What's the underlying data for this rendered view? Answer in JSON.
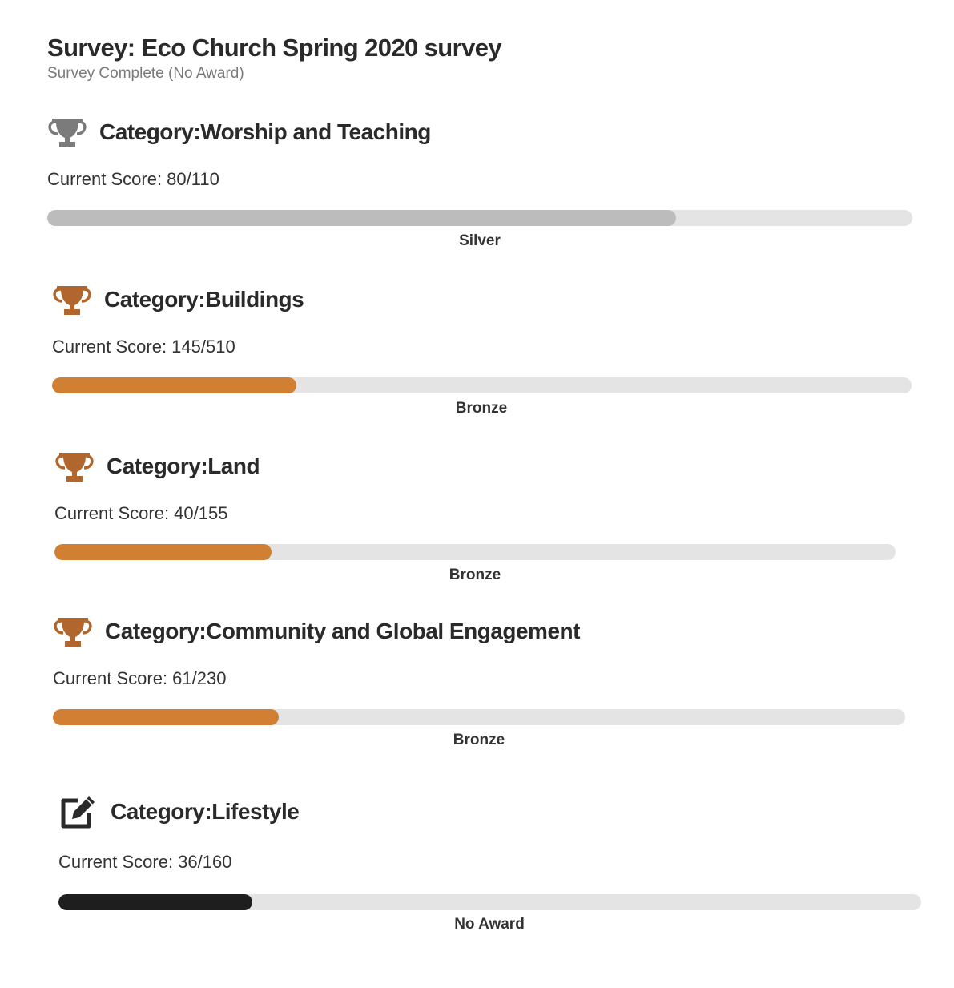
{
  "survey": {
    "title": "Survey: Eco Church Spring 2020 survey",
    "status": "Survey Complete (No Award)"
  },
  "colors": {
    "silver": "#bcbcbc",
    "bronze": "#d17f33",
    "none": "#1e1e1e",
    "track": "#e4e4e4",
    "trophy_silver": "#7b7b7b",
    "trophy_bronze": "#b0662d",
    "edit_icon": "#2a2a2a"
  },
  "categories": [
    {
      "title": "Category:Worship and Teaching",
      "score_text": "Current Score: 80/110",
      "score": 80,
      "max": 110,
      "progress": 0.727,
      "award": "Silver",
      "icon": "trophy-icon"
    },
    {
      "title": "Category:Buildings",
      "score_text": "Current Score: 145/510",
      "score": 145,
      "max": 510,
      "progress": 0.284,
      "award": "Bronze",
      "icon": "trophy-icon"
    },
    {
      "title": "Category:Land",
      "score_text": "Current Score: 40/155",
      "score": 40,
      "max": 155,
      "progress": 0.258,
      "award": "Bronze",
      "icon": "trophy-icon"
    },
    {
      "title": "Category:Community and Global Engagement",
      "score_text": "Current Score: 61/230",
      "score": 61,
      "max": 230,
      "progress": 0.265,
      "award": "Bronze",
      "icon": "trophy-icon"
    },
    {
      "title": "Category:Lifestyle",
      "score_text": "Current Score: 36/160",
      "score": 36,
      "max": 160,
      "progress": 0.225,
      "award": "No Award",
      "icon": "edit-icon"
    }
  ]
}
